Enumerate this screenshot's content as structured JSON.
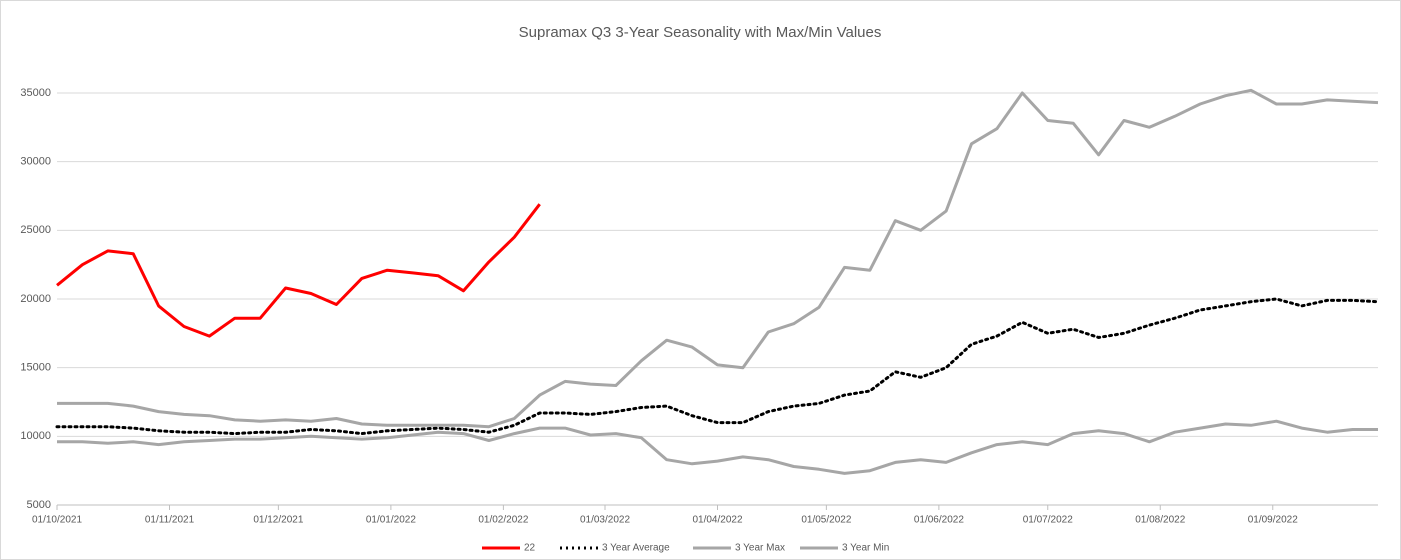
{
  "chart_data": {
    "type": "line",
    "title": "Supramax Q3 3-Year Seasonality with Max/Min Values",
    "x": [
      "2021-10-01",
      "2021-10-08",
      "2021-10-15",
      "2021-10-22",
      "2021-10-29",
      "2021-11-05",
      "2021-11-12",
      "2021-11-19",
      "2021-11-26",
      "2021-12-03",
      "2021-12-10",
      "2021-12-17",
      "2021-12-24",
      "2021-12-31",
      "2022-01-07",
      "2022-01-14",
      "2022-01-21",
      "2022-01-28",
      "2022-02-04",
      "2022-02-11",
      "2022-02-18",
      "2022-02-25",
      "2022-03-04",
      "2022-03-11",
      "2022-03-18",
      "2022-03-25",
      "2022-04-01",
      "2022-04-08",
      "2022-04-15",
      "2022-04-22",
      "2022-04-29",
      "2022-05-06",
      "2022-05-13",
      "2022-05-20",
      "2022-05-27",
      "2022-06-03",
      "2022-06-10",
      "2022-06-17",
      "2022-06-24",
      "2022-07-01",
      "2022-07-08",
      "2022-07-15",
      "2022-07-22",
      "2022-07-29",
      "2022-08-05",
      "2022-08-12",
      "2022-08-19",
      "2022-08-26",
      "2022-09-02",
      "2022-09-09",
      "2022-09-16",
      "2022-09-23",
      "2022-09-30"
    ],
    "series": [
      {
        "name": "22",
        "color": "#ff0000",
        "style": "solid",
        "values": [
          21000,
          22500,
          23500,
          23300,
          19500,
          18000,
          17300,
          18600,
          18600,
          20800,
          20400,
          19600,
          21500,
          22100,
          21900,
          21700,
          20600,
          22700,
          24500,
          26900,
          null,
          null,
          null,
          null,
          null,
          null,
          null,
          null,
          null,
          null,
          null,
          null,
          null,
          null,
          null,
          null,
          null,
          null,
          null,
          null,
          null,
          null,
          null,
          null,
          null,
          null,
          null,
          null,
          null,
          null,
          null,
          null,
          null
        ]
      },
      {
        "name": "3 Year Average",
        "color": "#000000",
        "style": "dotted",
        "values": [
          10700,
          10700,
          10700,
          10600,
          10400,
          10300,
          10300,
          10200,
          10300,
          10300,
          10500,
          10400,
          10200,
          10400,
          10500,
          10600,
          10500,
          10300,
          10800,
          11700,
          11700,
          11600,
          11800,
          12100,
          12200,
          11500,
          11000,
          11000,
          11800,
          12200,
          12400,
          13000,
          13300,
          14700,
          14300,
          15000,
          16700,
          17300,
          18300,
          17500,
          17800,
          17200,
          17500,
          18100,
          18600,
          19200,
          19500,
          19800,
          20000,
          19500,
          19900,
          19900,
          19800
        ]
      },
      {
        "name": "3 Year Max",
        "color": "#a6a6a6",
        "style": "solid",
        "values": [
          12400,
          12400,
          12400,
          12200,
          11800,
          11600,
          11500,
          11200,
          11100,
          11200,
          11100,
          11300,
          10900,
          10800,
          10800,
          10800,
          10800,
          10700,
          11300,
          13000,
          14000,
          13800,
          13700,
          15500,
          17000,
          16500,
          15200,
          15000,
          17600,
          18200,
          19400,
          22300,
          22100,
          25700,
          25000,
          26400,
          31300,
          32400,
          35000,
          33000,
          32800,
          30500,
          33000,
          32500,
          33300,
          34200,
          34800,
          35200,
          34200,
          34200,
          34500,
          34400,
          34300
        ]
      },
      {
        "name": "3 Year Min",
        "color": "#a6a6a6",
        "style": "solid",
        "values": [
          9600,
          9600,
          9500,
          9600,
          9400,
          9600,
          9700,
          9800,
          9800,
          9900,
          10000,
          9900,
          9800,
          9900,
          10100,
          10300,
          10200,
          9700,
          10200,
          10600,
          10600,
          10100,
          10200,
          9900,
          8300,
          8000,
          8200,
          8500,
          8300,
          7800,
          7600,
          7300,
          7500,
          8100,
          8300,
          8100,
          8800,
          9400,
          9600,
          9400,
          10200,
          10400,
          10200,
          9600,
          10300,
          10600,
          10900,
          10800,
          11100,
          10600,
          10300,
          10500,
          10500
        ]
      }
    ],
    "xlim": [
      "2021-10-01",
      "2022-09-30"
    ],
    "xticks": [
      {
        "value": "2021-10-01",
        "label": "01/10/2021"
      },
      {
        "value": "2021-11-01",
        "label": "01/11/2021"
      },
      {
        "value": "2021-12-01",
        "label": "01/12/2021"
      },
      {
        "value": "2022-01-01",
        "label": "01/01/2022"
      },
      {
        "value": "2022-02-01",
        "label": "01/02/2022"
      },
      {
        "value": "2022-03-01",
        "label": "01/03/2022"
      },
      {
        "value": "2022-04-01",
        "label": "01/04/2022"
      },
      {
        "value": "2022-05-01",
        "label": "01/05/2022"
      },
      {
        "value": "2022-06-01",
        "label": "01/06/2022"
      },
      {
        "value": "2022-07-01",
        "label": "01/07/2022"
      },
      {
        "value": "2022-08-01",
        "label": "01/08/2022"
      },
      {
        "value": "2022-09-01",
        "label": "01/09/2022"
      }
    ],
    "ylim": [
      5000,
      35000
    ],
    "yticks": [
      5000,
      10000,
      15000,
      20000,
      25000,
      30000,
      35000
    ],
    "grid": true,
    "legend": "bottom"
  }
}
